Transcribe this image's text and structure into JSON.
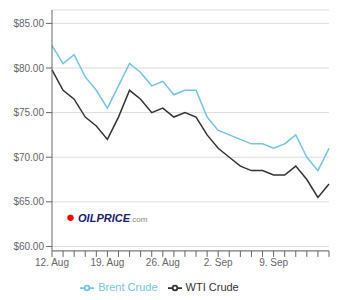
{
  "chart_data": {
    "type": "line",
    "categories": [
      "12. Aug",
      null,
      null,
      null,
      null,
      "19. Aug",
      null,
      null,
      null,
      null,
      "26. Aug",
      null,
      null,
      null,
      null,
      "2. Sep",
      null,
      null,
      null,
      null,
      "9. Sep",
      null,
      null,
      null,
      null,
      null
    ],
    "series": [
      {
        "name": "Brent Crude",
        "color": "#72c4e8",
        "values": [
          82.5,
          80.5,
          81.5,
          79.0,
          77.5,
          75.5,
          78.0,
          80.5,
          79.5,
          78.0,
          78.5,
          77.0,
          77.5,
          77.5,
          74.5,
          73.0,
          72.5,
          72.0,
          71.5,
          71.5,
          71.0,
          71.5,
          72.5,
          70.0,
          68.5,
          71.0
        ]
      },
      {
        "name": "WTI Crude",
        "color": "#333333",
        "values": [
          79.8,
          77.5,
          76.5,
          74.5,
          73.5,
          72.0,
          74.5,
          77.5,
          76.5,
          75.0,
          75.5,
          74.5,
          75.0,
          74.5,
          72.5,
          71.0,
          70.0,
          69.0,
          68.5,
          68.5,
          68.0,
          68.0,
          69.0,
          67.5,
          65.5,
          67.0
        ]
      }
    ],
    "ylim": [
      59.5,
      86.5
    ],
    "yticks": [
      {
        "value": 60.0,
        "label": "$60.00"
      },
      {
        "value": 65.0,
        "label": "$65.00"
      },
      {
        "value": 70.0,
        "label": "$70.00"
      },
      {
        "value": 75.0,
        "label": "$75.00"
      },
      {
        "value": 80.0,
        "label": "$80.00"
      },
      {
        "value": 85.0,
        "label": "$85.00"
      }
    ],
    "grid": true,
    "legend": "bottom",
    "annotations": [
      {
        "text": "●",
        "color": "red"
      },
      {
        "text": "OILPRICE",
        "color": "#1a1a6e"
      },
      {
        "text": ".com",
        "color": "#888888"
      }
    ]
  }
}
